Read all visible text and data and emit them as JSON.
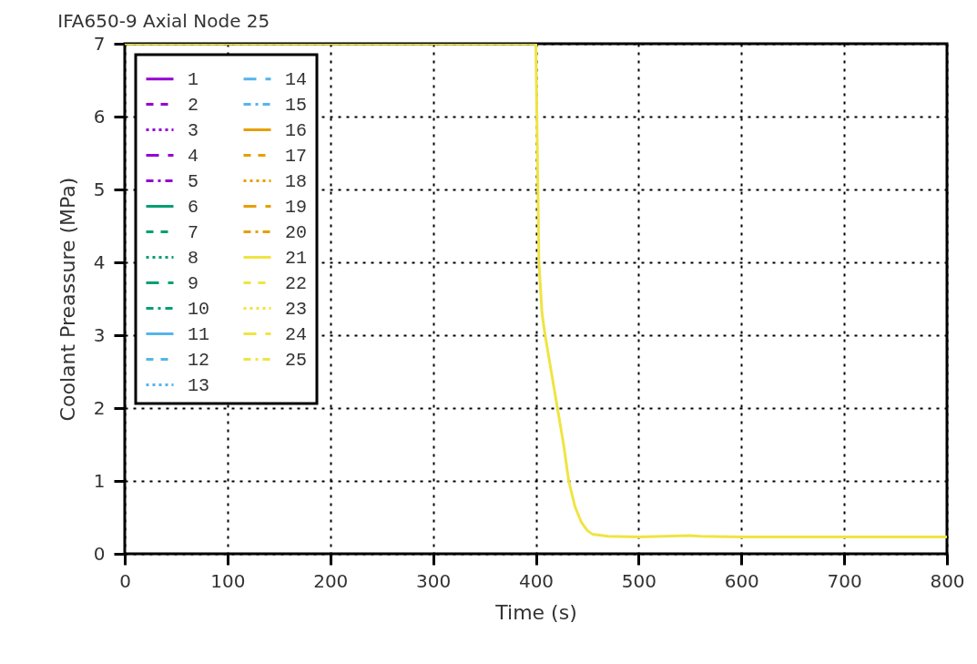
{
  "chart_data": {
    "type": "line",
    "title": "IFA650-9 Axial Node 25",
    "xlabel": "Time (s)",
    "ylabel": "Coolant Preassure (MPa)",
    "xlim": [
      0,
      800
    ],
    "ylim": [
      0,
      7
    ],
    "xticks": [
      0,
      100,
      200,
      300,
      400,
      500,
      600,
      700,
      800
    ],
    "yticks": [
      0,
      1,
      2,
      3,
      4,
      5,
      6,
      7
    ],
    "grid": true,
    "legend": "top left",
    "x": [
      0,
      100,
      200,
      300,
      395,
      400,
      403,
      406,
      409,
      415,
      421,
      427,
      432,
      438,
      444,
      450,
      455,
      470,
      500,
      550,
      560,
      600,
      700,
      800
    ],
    "series": [
      {
        "name": "1",
        "color": "#9400d3",
        "line_style": "solid",
        "values": [
          null,
          null,
          null,
          null,
          null,
          null,
          null,
          null,
          null,
          null,
          null,
          null,
          null,
          null,
          null,
          null,
          null,
          null,
          null,
          null,
          null,
          null,
          null,
          null
        ]
      },
      {
        "name": "2",
        "color": "#9400d3",
        "line_style": "dashed",
        "values": [
          null,
          null,
          null,
          null,
          null,
          null,
          null,
          null,
          null,
          null,
          null,
          null,
          null,
          null,
          null,
          null,
          null,
          null,
          null,
          null,
          null,
          null,
          null,
          null
        ]
      },
      {
        "name": "3",
        "color": "#9400d3",
        "line_style": "dotted",
        "values": [
          null,
          null,
          null,
          null,
          null,
          null,
          null,
          null,
          null,
          null,
          null,
          null,
          null,
          null,
          null,
          null,
          null,
          null,
          null,
          null,
          null,
          null,
          null,
          null
        ]
      },
      {
        "name": "4",
        "color": "#9400d3",
        "line_style": "longdash",
        "values": [
          null,
          null,
          null,
          null,
          null,
          null,
          null,
          null,
          null,
          null,
          null,
          null,
          null,
          null,
          null,
          null,
          null,
          null,
          null,
          null,
          null,
          null,
          null,
          null
        ]
      },
      {
        "name": "5",
        "color": "#9400d3",
        "line_style": "dashdot",
        "values": [
          null,
          null,
          null,
          null,
          null,
          null,
          null,
          null,
          null,
          null,
          null,
          null,
          null,
          null,
          null,
          null,
          null,
          null,
          null,
          null,
          null,
          null,
          null,
          null
        ]
      },
      {
        "name": "6",
        "color": "#009e73",
        "line_style": "solid",
        "values": [
          null,
          null,
          null,
          null,
          null,
          null,
          null,
          null,
          null,
          null,
          null,
          null,
          null,
          null,
          null,
          null,
          null,
          null,
          null,
          null,
          null,
          null,
          null,
          null
        ]
      },
      {
        "name": "7",
        "color": "#009e73",
        "line_style": "dashed",
        "values": [
          null,
          null,
          null,
          null,
          null,
          null,
          null,
          null,
          null,
          null,
          null,
          null,
          null,
          null,
          null,
          null,
          null,
          null,
          null,
          null,
          null,
          null,
          null,
          null
        ]
      },
      {
        "name": "8",
        "color": "#009e73",
        "line_style": "dotted",
        "values": [
          null,
          null,
          null,
          null,
          null,
          null,
          null,
          null,
          null,
          null,
          null,
          null,
          null,
          null,
          null,
          null,
          null,
          null,
          null,
          null,
          null,
          null,
          null,
          null
        ]
      },
      {
        "name": "9",
        "color": "#009e73",
        "line_style": "longdash",
        "values": [
          null,
          null,
          null,
          null,
          null,
          null,
          null,
          null,
          null,
          null,
          null,
          null,
          null,
          null,
          null,
          null,
          null,
          null,
          null,
          null,
          null,
          null,
          null,
          null
        ]
      },
      {
        "name": "10",
        "color": "#009e73",
        "line_style": "dashdot",
        "values": [
          null,
          null,
          null,
          null,
          null,
          null,
          null,
          null,
          null,
          null,
          null,
          null,
          null,
          null,
          null,
          null,
          null,
          null,
          null,
          null,
          null,
          null,
          null,
          null
        ]
      },
      {
        "name": "11",
        "color": "#56b4e9",
        "line_style": "solid",
        "values": [
          null,
          null,
          null,
          null,
          null,
          null,
          null,
          null,
          null,
          null,
          null,
          null,
          null,
          null,
          null,
          null,
          null,
          null,
          null,
          null,
          null,
          null,
          null,
          null
        ]
      },
      {
        "name": "12",
        "color": "#56b4e9",
        "line_style": "dashed",
        "values": [
          null,
          null,
          null,
          null,
          null,
          null,
          null,
          null,
          null,
          null,
          null,
          null,
          null,
          null,
          null,
          null,
          null,
          null,
          null,
          null,
          null,
          null,
          null,
          null
        ]
      },
      {
        "name": "13",
        "color": "#56b4e9",
        "line_style": "dotted",
        "values": [
          null,
          null,
          null,
          null,
          null,
          null,
          null,
          null,
          null,
          null,
          null,
          null,
          null,
          null,
          null,
          null,
          null,
          null,
          null,
          null,
          null,
          null,
          null,
          null
        ]
      },
      {
        "name": "14",
        "color": "#56b4e9",
        "line_style": "longdash",
        "values": [
          null,
          null,
          null,
          null,
          null,
          null,
          null,
          null,
          null,
          null,
          null,
          null,
          null,
          null,
          null,
          null,
          null,
          null,
          null,
          null,
          null,
          null,
          null,
          null
        ]
      },
      {
        "name": "15",
        "color": "#56b4e9",
        "line_style": "dashdot",
        "values": [
          null,
          null,
          null,
          null,
          null,
          null,
          null,
          null,
          null,
          null,
          null,
          null,
          null,
          null,
          null,
          null,
          null,
          null,
          null,
          null,
          null,
          null,
          null,
          null
        ]
      },
      {
        "name": "16",
        "color": "#e69f00",
        "line_style": "solid",
        "values": [
          null,
          null,
          null,
          null,
          null,
          null,
          null,
          null,
          null,
          null,
          null,
          null,
          null,
          null,
          null,
          null,
          null,
          null,
          null,
          null,
          null,
          null,
          null,
          null
        ]
      },
      {
        "name": "17",
        "color": "#e69f00",
        "line_style": "dashed",
        "values": [
          null,
          null,
          null,
          null,
          null,
          null,
          null,
          null,
          null,
          null,
          null,
          null,
          null,
          null,
          null,
          null,
          null,
          null,
          null,
          null,
          null,
          null,
          null,
          null
        ]
      },
      {
        "name": "18",
        "color": "#e69f00",
        "line_style": "dotted",
        "values": [
          null,
          null,
          null,
          null,
          null,
          null,
          null,
          null,
          null,
          null,
          null,
          null,
          null,
          null,
          null,
          null,
          null,
          null,
          null,
          null,
          null,
          null,
          null,
          null
        ]
      },
      {
        "name": "19",
        "color": "#e69f00",
        "line_style": "longdash",
        "values": [
          null,
          null,
          null,
          null,
          null,
          null,
          null,
          null,
          null,
          null,
          null,
          null,
          null,
          null,
          null,
          null,
          null,
          null,
          null,
          null,
          null,
          null,
          null,
          null
        ]
      },
      {
        "name": "20",
        "color": "#e69f00",
        "line_style": "dashdot",
        "values": [
          null,
          null,
          null,
          null,
          null,
          null,
          null,
          null,
          null,
          null,
          null,
          null,
          null,
          null,
          null,
          null,
          null,
          null,
          null,
          null,
          null,
          null,
          null,
          null
        ]
      },
      {
        "name": "21",
        "color": "#f0e442",
        "line_style": "solid",
        "values": [
          7,
          7,
          7,
          7,
          7,
          7,
          4.0,
          3.3,
          3.0,
          2.5,
          2.0,
          1.5,
          1.0,
          0.65,
          0.44,
          0.32,
          0.27,
          0.24,
          0.23,
          0.25,
          0.24,
          0.23,
          0.23,
          0.23
        ]
      },
      {
        "name": "22",
        "color": "#f0e442",
        "line_style": "dashed",
        "values": [
          null,
          null,
          null,
          null,
          null,
          null,
          null,
          null,
          null,
          null,
          null,
          null,
          null,
          null,
          null,
          null,
          null,
          null,
          null,
          null,
          null,
          null,
          null,
          null
        ]
      },
      {
        "name": "23",
        "color": "#f0e442",
        "line_style": "dotted",
        "values": [
          null,
          null,
          null,
          null,
          null,
          null,
          null,
          null,
          null,
          null,
          null,
          null,
          null,
          null,
          null,
          null,
          null,
          null,
          null,
          null,
          null,
          null,
          null,
          null
        ]
      },
      {
        "name": "24",
        "color": "#f0e442",
        "line_style": "longdash",
        "values": [
          null,
          null,
          null,
          null,
          null,
          null,
          null,
          null,
          null,
          null,
          null,
          null,
          null,
          null,
          null,
          null,
          null,
          null,
          null,
          null,
          null,
          null,
          null,
          null
        ]
      },
      {
        "name": "25",
        "color": "#f0e442",
        "line_style": "dashdot",
        "values": [
          null,
          null,
          null,
          null,
          null,
          null,
          null,
          null,
          null,
          null,
          null,
          null,
          null,
          null,
          null,
          null,
          null,
          null,
          null,
          null,
          null,
          null,
          null,
          null
        ]
      }
    ]
  }
}
